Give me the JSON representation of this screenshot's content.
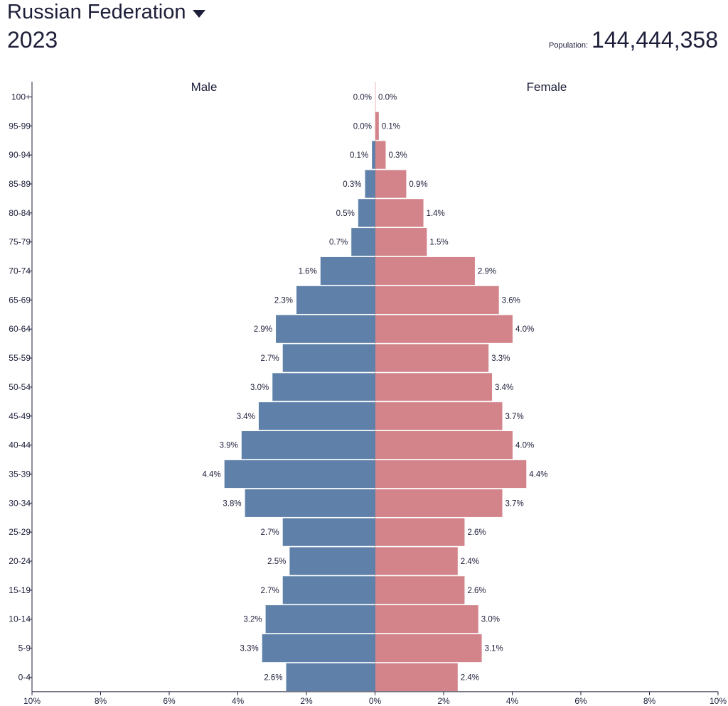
{
  "header": {
    "country": "Russian Federation",
    "caret_icon": "caret-down-icon",
    "year": "2023",
    "population_label": "Population:",
    "population_value": "144,444,358"
  },
  "chart_data": {
    "type": "bar",
    "orientation": "horizontal",
    "categories": [
      "100+",
      "95-99",
      "90-94",
      "85-89",
      "80-84",
      "75-79",
      "70-74",
      "65-69",
      "60-64",
      "55-59",
      "50-54",
      "45-49",
      "40-44",
      "35-39",
      "30-34",
      "25-29",
      "20-24",
      "15-19",
      "10-14",
      "5-9",
      "0-4"
    ],
    "series": [
      {
        "name": "Male",
        "color": "#5f81a9",
        "values": [
          0.0,
          0.0,
          0.1,
          0.3,
          0.5,
          0.7,
          1.6,
          2.3,
          2.9,
          2.7,
          3.0,
          3.4,
          3.9,
          4.4,
          3.8,
          2.7,
          2.5,
          2.7,
          3.2,
          3.3,
          2.6
        ],
        "labels": [
          "0.0%",
          "0.0%",
          "0.1%",
          "0.3%",
          "0.5%",
          "0.7%",
          "1.6%",
          "2.3%",
          "2.9%",
          "2.7%",
          "3.0%",
          "3.4%",
          "3.9%",
          "4.4%",
          "3.8%",
          "2.7%",
          "2.5%",
          "2.7%",
          "3.2%",
          "3.3%",
          "2.6%"
        ]
      },
      {
        "name": "Female",
        "color": "#d2848a",
        "values": [
          0.0,
          0.1,
          0.3,
          0.9,
          1.4,
          1.5,
          2.9,
          3.6,
          4.0,
          3.3,
          3.4,
          3.7,
          4.0,
          4.4,
          3.7,
          2.6,
          2.4,
          2.6,
          3.0,
          3.1,
          2.4
        ],
        "labels": [
          "0.0%",
          "0.1%",
          "0.3%",
          "0.9%",
          "1.4%",
          "1.5%",
          "2.9%",
          "3.6%",
          "4.0%",
          "3.3%",
          "3.4%",
          "3.7%",
          "4.0%",
          "4.4%",
          "3.7%",
          "2.6%",
          "2.4%",
          "2.6%",
          "3.0%",
          "3.1%",
          "2.4%"
        ]
      }
    ],
    "x_ticks": [
      "10%",
      "8%",
      "6%",
      "4%",
      "2%",
      "0%",
      "2%",
      "4%",
      "6%",
      "8%",
      "10%"
    ],
    "xlim": [
      -10,
      10
    ],
    "grid": false
  }
}
